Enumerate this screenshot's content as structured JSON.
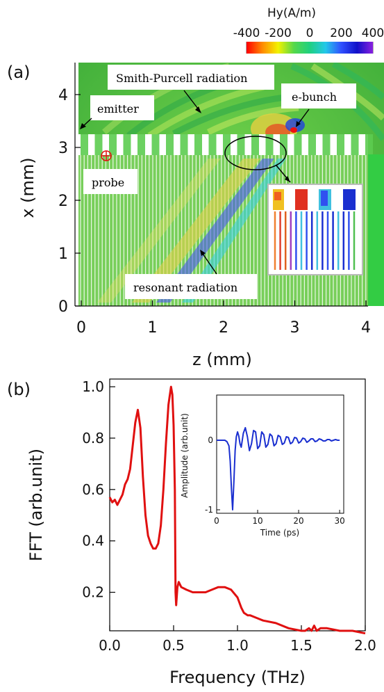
{
  "panel_a": {
    "label": "(a)",
    "colorbar": {
      "title": "Hy(A/m)",
      "ticks": [
        "-400",
        "-200",
        "0",
        "200",
        "400"
      ],
      "colors": [
        "#ff0000",
        "#ff8a00",
        "#f2f200",
        "#55d84a",
        "#1fd080",
        "#23c8e8",
        "#3050ff",
        "#1010c8",
        "#8a20e0"
      ]
    },
    "annotations": {
      "smith_purcell": "Smith-Purcell radiation",
      "emitter": "emitter",
      "e_bunch": "e-bunch",
      "probe": "probe",
      "resonant": "resonant radiation"
    }
  },
  "panel_b": {
    "label": "(b)"
  },
  "chart_data": [
    {
      "type": "heatmap",
      "xlabel": "z (mm)",
      "ylabel": "x (mm)",
      "xlim": [
        0,
        4.2
      ],
      "ylim": [
        0,
        4.6
      ],
      "xticks": [
        "0",
        "1",
        "2",
        "3",
        "4"
      ],
      "yticks": [
        "0",
        "1",
        "2",
        "3",
        "4"
      ],
      "colorbar_range": [
        -400,
        400
      ]
    },
    {
      "type": "line",
      "xlabel": "Frequency (THz)",
      "ylabel": "FFT (arb.unit)",
      "xlim": [
        0,
        2.0
      ],
      "ylim": [
        0.05,
        1.03
      ],
      "xticks": [
        "0.0",
        "0.5",
        "1.0",
        "1.5",
        "2.0"
      ],
      "yticks": [
        "0.2",
        "0.4",
        "0.6",
        "0.8",
        "1.0"
      ],
      "color": "#e01010",
      "x": [
        0.0,
        0.02,
        0.04,
        0.06,
        0.08,
        0.1,
        0.12,
        0.14,
        0.16,
        0.18,
        0.2,
        0.22,
        0.24,
        0.26,
        0.28,
        0.3,
        0.32,
        0.34,
        0.36,
        0.38,
        0.4,
        0.42,
        0.44,
        0.46,
        0.48,
        0.49,
        0.5,
        0.51,
        0.515,
        0.52,
        0.53,
        0.54,
        0.56,
        0.6,
        0.65,
        0.7,
        0.75,
        0.8,
        0.85,
        0.9,
        0.95,
        1.0,
        1.03,
        1.05,
        1.08,
        1.1,
        1.15,
        1.2,
        1.3,
        1.4,
        1.5,
        1.53,
        1.56,
        1.58,
        1.6,
        1.62,
        1.65,
        1.7,
        1.8,
        1.9,
        2.0
      ],
      "y": [
        0.57,
        0.55,
        0.56,
        0.54,
        0.56,
        0.58,
        0.62,
        0.64,
        0.68,
        0.77,
        0.86,
        0.91,
        0.84,
        0.65,
        0.5,
        0.42,
        0.39,
        0.37,
        0.37,
        0.39,
        0.46,
        0.6,
        0.78,
        0.93,
        1.0,
        0.97,
        0.85,
        0.6,
        0.2,
        0.15,
        0.22,
        0.24,
        0.22,
        0.21,
        0.2,
        0.2,
        0.2,
        0.21,
        0.22,
        0.22,
        0.21,
        0.18,
        0.14,
        0.12,
        0.11,
        0.11,
        0.1,
        0.09,
        0.08,
        0.06,
        0.05,
        0.05,
        0.06,
        0.05,
        0.07,
        0.05,
        0.06,
        0.06,
        0.05,
        0.05,
        0.04
      ]
    },
    {
      "type": "line",
      "xlabel": "Time (ps)",
      "ylabel": "Amplitude (arb.unit)",
      "xlim": [
        0,
        31
      ],
      "ylim": [
        -1.05,
        0.65
      ],
      "xticks": [
        "0",
        "10",
        "20",
        "30"
      ],
      "yticks": [
        "-1",
        "0"
      ],
      "color": "#1a2fd0",
      "x": [
        0,
        0.5,
        1,
        1.5,
        2,
        2.5,
        3,
        3.3,
        3.6,
        3.9,
        4.2,
        4.5,
        4.8,
        5.1,
        5.4,
        5.7,
        6,
        6.5,
        7,
        7.5,
        8,
        8.5,
        9,
        9.5,
        10,
        10.5,
        11,
        11.5,
        12,
        12.5,
        13,
        13.5,
        14,
        14.5,
        15,
        15.5,
        16,
        16.5,
        17,
        17.5,
        18,
        18.5,
        19,
        19.5,
        20,
        20.5,
        21,
        21.5,
        22,
        22.5,
        23,
        23.5,
        24,
        24.5,
        25,
        25.5,
        26,
        26.5,
        27,
        27.5,
        28,
        28.5,
        29,
        29.5,
        30
      ],
      "y": [
        0,
        0,
        0,
        0,
        0,
        -0.02,
        -0.08,
        -0.3,
        -0.7,
        -1.0,
        -0.6,
        -0.15,
        0.05,
        0.12,
        0.06,
        -0.05,
        -0.1,
        0.1,
        0.18,
        0.05,
        -0.15,
        -0.05,
        0.14,
        0.12,
        -0.12,
        -0.08,
        0.12,
        0.08,
        -0.1,
        -0.06,
        0.09,
        0.06,
        -0.08,
        -0.05,
        0.07,
        0.05,
        -0.06,
        -0.04,
        0.05,
        0.04,
        -0.05,
        -0.03,
        0.04,
        0.03,
        -0.04,
        -0.02,
        0.03,
        0.02,
        -0.03,
        -0.01,
        0.02,
        0.02,
        -0.02,
        -0.01,
        0.02,
        0.01,
        -0.01,
        -0.01,
        0.01,
        0.01,
        -0.01,
        0,
        0.01,
        0,
        0
      ]
    }
  ]
}
